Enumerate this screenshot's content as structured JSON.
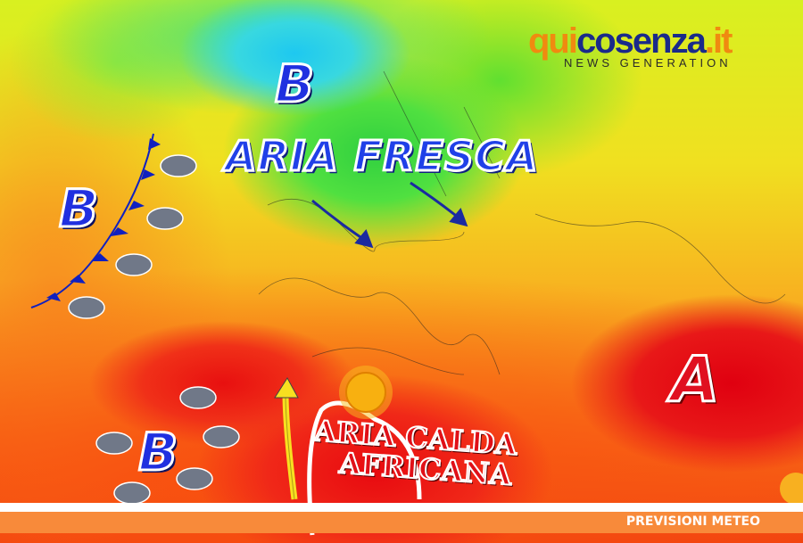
{
  "logo": {
    "name_part1": "qui",
    "name_part2": "cosenza",
    "tld": ".it",
    "tagline": "NEWS GENERATION"
  },
  "labels": {
    "low_pressure": "B",
    "high_pressure": "A",
    "cool_air": "ARIA FRESCA",
    "warm_air_line1": "ARIA CALDA",
    "warm_air_line2": "AFRICANA"
  },
  "banner": {
    "text": "PREVISIONI METEO"
  },
  "icons": [
    "rain-cloud-icon",
    "sun-icon",
    "cloud-sun-icon",
    "cold-front-symbol",
    "arrow-icon"
  ],
  "colors": {
    "low": "#2030e0",
    "high": "#e01020",
    "banner": "#f88a3a",
    "logo_orange": "#f08a10",
    "logo_blue": "#1a2a8a"
  }
}
